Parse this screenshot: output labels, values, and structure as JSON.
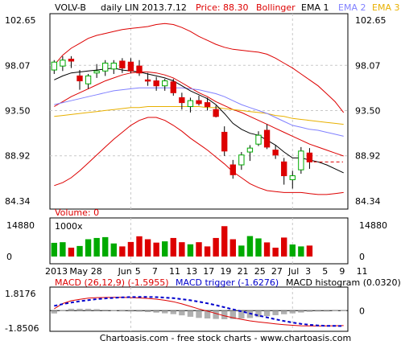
{
  "header": {
    "symbol": "VOLV-B",
    "interval": "daily LIN 2013.7.12",
    "price": "Price: 88.30",
    "bollinger": "Bollinger",
    "ema1": "EMA 1",
    "ema2": "EMA 2",
    "ema3": "EMA 3"
  },
  "volume_label": "Volume: 0",
  "volume_unit": "1000x",
  "macd": {
    "label": "MACD (26,12,9) (-1.5955)",
    "trigger": "MACD trigger (-1.6276)",
    "histogram": "MACD histogram (0.0320)"
  },
  "footer": "Chartoasis.com - free stock charts - www.chartoasis.com",
  "colors": {
    "up": "#00aa00",
    "down": "#dd0000",
    "bollinger": "#dd0000",
    "ema1": "#000000",
    "ema2": "#8080ff",
    "ema3": "#e8b000",
    "macd": "#dd0000",
    "trigger": "#0000cc",
    "histogram": "#b0b0b0",
    "frame": "#000000",
    "grid": "#c8c8c8"
  },
  "chart_data": [
    {
      "type": "candlestick",
      "title": "VOLV-B",
      "ylim": [
        84.34,
        102.65
      ],
      "yticks": [
        "102.65",
        "98.07",
        "93.50",
        "88.92",
        "84.34"
      ],
      "xticks": [
        "2013",
        "May",
        "28",
        "Jun",
        "5",
        "7",
        "11",
        "13",
        "17",
        "19",
        "21",
        "25",
        "27",
        "Jul",
        "3",
        "5",
        "9",
        "11"
      ],
      "last_price": 88.3,
      "candles": [
        {
          "o": 97.6,
          "h": 98.6,
          "l": 97.2,
          "c": 98.4
        },
        {
          "o": 98.0,
          "h": 99.0,
          "l": 97.5,
          "c": 98.6
        },
        {
          "o": 98.7,
          "h": 99.0,
          "l": 97.8,
          "c": 98.5
        },
        {
          "o": 97.0,
          "h": 97.6,
          "l": 95.6,
          "c": 96.5
        },
        {
          "o": 96.2,
          "h": 97.2,
          "l": 95.7,
          "c": 97.0
        },
        {
          "o": 97.3,
          "h": 98.2,
          "l": 96.8,
          "c": 97.5
        },
        {
          "o": 97.5,
          "h": 98.6,
          "l": 97.0,
          "c": 98.3
        },
        {
          "o": 97.7,
          "h": 98.6,
          "l": 97.2,
          "c": 98.3
        },
        {
          "o": 98.5,
          "h": 98.8,
          "l": 97.3,
          "c": 97.8
        },
        {
          "o": 98.4,
          "h": 98.8,
          "l": 97.3,
          "c": 97.5
        },
        {
          "o": 98.0,
          "h": 98.6,
          "l": 97.0,
          "c": 97.3
        },
        {
          "o": 96.6,
          "h": 97.3,
          "l": 96.0,
          "c": 96.5
        },
        {
          "o": 96.5,
          "h": 96.9,
          "l": 95.5,
          "c": 96.0
        },
        {
          "o": 96.0,
          "h": 96.7,
          "l": 95.5,
          "c": 96.5
        },
        {
          "o": 96.4,
          "h": 96.7,
          "l": 95.0,
          "c": 95.3
        },
        {
          "o": 94.8,
          "h": 95.3,
          "l": 93.6,
          "c": 94.3
        },
        {
          "o": 93.9,
          "h": 94.8,
          "l": 93.3,
          "c": 94.5
        },
        {
          "o": 94.5,
          "h": 95.0,
          "l": 94.0,
          "c": 94.2
        },
        {
          "o": 94.3,
          "h": 94.8,
          "l": 93.5,
          "c": 93.9
        },
        {
          "o": 93.6,
          "h": 94.0,
          "l": 92.8,
          "c": 92.9
        },
        {
          "o": 91.3,
          "h": 91.9,
          "l": 88.9,
          "c": 89.4
        },
        {
          "o": 88.0,
          "h": 88.5,
          "l": 86.6,
          "c": 87.0
        },
        {
          "o": 88.0,
          "h": 89.3,
          "l": 87.5,
          "c": 89.0
        },
        {
          "o": 89.3,
          "h": 90.0,
          "l": 88.4,
          "c": 89.7
        },
        {
          "o": 90.1,
          "h": 91.4,
          "l": 89.9,
          "c": 91.0
        },
        {
          "o": 91.5,
          "h": 92.1,
          "l": 89.6,
          "c": 89.8
        },
        {
          "o": 89.5,
          "h": 90.0,
          "l": 88.6,
          "c": 89.0
        },
        {
          "o": 88.3,
          "h": 88.7,
          "l": 86.0,
          "c": 86.9
        },
        {
          "o": 86.5,
          "h": 87.4,
          "l": 85.6,
          "c": 86.9
        },
        {
          "o": 87.5,
          "h": 89.8,
          "l": 87.1,
          "c": 89.4
        },
        {
          "o": 89.2,
          "h": 89.7,
          "l": 87.6,
          "c": 88.3
        }
      ],
      "ema1": [
        96.6,
        97.0,
        97.3,
        97.4,
        97.5,
        97.6,
        97.7,
        97.8,
        97.6,
        97.5,
        97.4,
        97.2,
        97.0,
        96.8,
        96.5,
        96.0,
        95.5,
        95.1,
        94.7,
        94.1,
        93.2,
        92.2,
        91.6,
        91.2,
        91.0,
        90.5,
        90.0,
        89.3,
        88.7,
        88.7,
        88.5,
        88.3,
        88.0,
        87.6,
        87.2
      ],
      "ema2": [
        94.1,
        94.3,
        94.5,
        94.7,
        94.9,
        95.1,
        95.3,
        95.5,
        95.6,
        95.7,
        95.8,
        95.8,
        95.8,
        95.8,
        95.8,
        95.8,
        95.7,
        95.6,
        95.4,
        95.2,
        94.9,
        94.5,
        94.1,
        93.8,
        93.5,
        93.2,
        92.8,
        92.4,
        92.0,
        91.8,
        91.6,
        91.5,
        91.3,
        91.1,
        90.9
      ],
      "ema3": [
        92.9,
        93.0,
        93.1,
        93.2,
        93.3,
        93.4,
        93.5,
        93.6,
        93.7,
        93.8,
        93.8,
        93.9,
        93.9,
        93.9,
        93.9,
        93.9,
        93.9,
        93.9,
        93.8,
        93.8,
        93.7,
        93.6,
        93.5,
        93.4,
        93.3,
        93.2,
        93.0,
        92.9,
        92.7,
        92.6,
        92.5,
        92.4,
        92.3,
        92.2,
        92.1
      ],
      "boll_upper": [
        98.1,
        99.1,
        99.8,
        100.3,
        100.8,
        101.1,
        101.3,
        101.5,
        101.7,
        101.8,
        101.9,
        102.0,
        102.2,
        102.3,
        102.2,
        101.9,
        101.5,
        101.0,
        100.6,
        100.2,
        99.9,
        99.7,
        99.6,
        99.5,
        99.4,
        99.2,
        98.8,
        98.3,
        97.8,
        97.2,
        96.6,
        96.0,
        95.2,
        94.4,
        93.3
      ],
      "boll_mid": [
        93.9,
        94.4,
        94.9,
        95.3,
        95.7,
        96.1,
        96.5,
        96.8,
        97.1,
        97.3,
        97.4,
        97.4,
        97.3,
        97.1,
        96.8,
        96.3,
        95.8,
        95.3,
        94.9,
        94.4,
        94.0,
        93.6,
        93.3,
        92.9,
        92.5,
        92.1,
        91.7,
        91.3,
        90.9,
        90.5,
        90.1,
        89.8,
        89.5,
        89.2,
        88.9
      ],
      "boll_lower": [
        85.9,
        86.2,
        86.7,
        87.4,
        88.2,
        89.0,
        89.8,
        90.6,
        91.3,
        92.0,
        92.5,
        92.8,
        92.8,
        92.5,
        92.0,
        91.4,
        90.7,
        90.1,
        89.5,
        88.8,
        88.1,
        87.3,
        86.7,
        86.1,
        85.7,
        85.4,
        85.3,
        85.2,
        85.2,
        85.2,
        85.1,
        85.0,
        85.0,
        85.1,
        85.2
      ]
    },
    {
      "type": "bar",
      "title": "Volume: 0",
      "ylim": [
        0,
        14880
      ],
      "yticks": [
        "14880",
        "0"
      ],
      "unit": "1000x",
      "values": [
        6500,
        6800,
        4200,
        5000,
        8200,
        8800,
        9200,
        6200,
        4800,
        6900,
        9600,
        8200,
        6600,
        7200,
        8800,
        6800,
        5800,
        6800,
        4800,
        8800,
        14400,
        8200,
        5200,
        9700,
        8600,
        6700,
        4200,
        9000,
        5700,
        4800,
        5200,
        0,
        0,
        0,
        0
      ],
      "up": [
        true,
        true,
        false,
        true,
        true,
        true,
        true,
        true,
        false,
        false,
        false,
        false,
        false,
        true,
        false,
        false,
        true,
        false,
        false,
        false,
        false,
        false,
        true,
        true,
        true,
        false,
        false,
        false,
        true,
        true,
        false,
        false,
        false,
        false,
        false
      ]
    },
    {
      "type": "line",
      "title": "MACD (26,12,9) (-1.5955)",
      "ylim": [
        -1.8506,
        1.8176
      ],
      "yticks": [
        "1.8176",
        "0",
        "-1.8506"
      ],
      "macd": [
        0.2,
        0.75,
        1.05,
        1.2,
        1.32,
        1.38,
        1.4,
        1.42,
        1.42,
        1.38,
        1.35,
        1.3,
        1.22,
        1.1,
        0.95,
        0.72,
        0.45,
        0.18,
        -0.05,
        -0.3,
        -0.55,
        -0.75,
        -0.92,
        -1.08,
        -1.2,
        -1.3,
        -1.4,
        -1.48,
        -1.55,
        -1.6,
        -1.62,
        -1.63,
        -1.62,
        -1.6,
        -1.59
      ],
      "trigger": [
        0.5,
        0.7,
        0.85,
        1.0,
        1.12,
        1.22,
        1.3,
        1.36,
        1.41,
        1.44,
        1.45,
        1.45,
        1.43,
        1.38,
        1.32,
        1.22,
        1.1,
        0.95,
        0.78,
        0.58,
        0.36,
        0.14,
        -0.08,
        -0.3,
        -0.52,
        -0.72,
        -0.92,
        -1.1,
        -1.26,
        -1.4,
        -1.5,
        -1.57,
        -1.61,
        -1.62,
        -1.63
      ],
      "histogram": [
        -0.3,
        0.05,
        0.2,
        0.2,
        0.2,
        0.16,
        0.1,
        0.06,
        0.01,
        -0.06,
        -0.1,
        -0.15,
        -0.21,
        -0.28,
        -0.37,
        -0.5,
        -0.65,
        -0.77,
        -0.83,
        -0.88,
        -0.91,
        -0.89,
        -0.84,
        -0.78,
        -0.68,
        -0.58,
        -0.48,
        -0.38,
        -0.29,
        -0.2,
        -0.12,
        -0.06,
        -0.01,
        0.02,
        0.04
      ]
    }
  ]
}
